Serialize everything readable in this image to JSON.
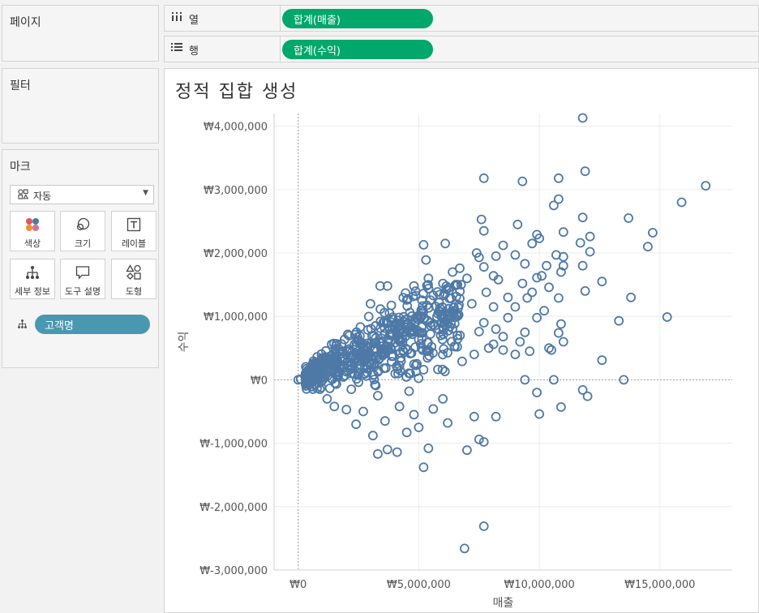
{
  "shelves": {
    "columns": {
      "icon": "columns-icon",
      "label": "열",
      "pill": "합계(매출)"
    },
    "rows": {
      "icon": "rows-icon",
      "label": "행",
      "pill": "합계(수익)"
    }
  },
  "cards": {
    "pages": {
      "title": "페이지"
    },
    "filters": {
      "title": "필터"
    },
    "marks": {
      "title": "마크",
      "mark_type": "자동",
      "buttons": [
        {
          "label": "색상",
          "icon": "color-icon"
        },
        {
          "label": "크기",
          "icon": "size-icon"
        },
        {
          "label": "레이블",
          "icon": "label-icon"
        },
        {
          "label": "세부 정보",
          "icon": "detail-icon"
        },
        {
          "label": "도구 설명",
          "icon": "tooltip-icon"
        },
        {
          "label": "도형",
          "icon": "shape-icon"
        }
      ],
      "detail_field": "고객명"
    }
  },
  "colors": {
    "mark": "#4e79a7",
    "row_pill": "#00a86b",
    "detail_pill": "#4a97b0"
  },
  "chart_data": {
    "type": "scatter",
    "title": "정적 집합 생성",
    "xlabel": "매출",
    "ylabel": "수익",
    "xlim": [
      -1000000,
      18000000
    ],
    "ylim": [
      -3000000,
      4200000
    ],
    "x_ticks": [
      0,
      5000000,
      10000000,
      15000000
    ],
    "x_tick_labels": [
      "₩0",
      "₩5,000,000",
      "₩10,000,000",
      "₩15,000,000"
    ],
    "y_ticks": [
      4000000,
      3000000,
      2000000,
      1000000,
      0,
      -1000000,
      -2000000,
      -3000000
    ],
    "y_tick_labels": [
      "₩4,000,000",
      "₩3,000,000",
      "₩2,000,000",
      "₩1,000,000",
      "₩0",
      "₩-1,000,000",
      "₩-2,000,000",
      "₩-3,000,000"
    ],
    "grid": true,
    "marker": "open-circle",
    "points": [
      [
        11800000,
        4130000
      ],
      [
        16900000,
        3060000
      ],
      [
        11900000,
        3290000
      ],
      [
        10800000,
        3180000
      ],
      [
        7700000,
        3180000
      ],
      [
        9300000,
        3130000
      ],
      [
        15900000,
        2800000
      ],
      [
        10800000,
        2850000
      ],
      [
        10600000,
        2750000
      ],
      [
        13700000,
        2550000
      ],
      [
        11800000,
        2560000
      ],
      [
        7600000,
        2530000
      ],
      [
        9100000,
        2450000
      ],
      [
        14700000,
        2320000
      ],
      [
        11000000,
        2330000
      ],
      [
        7700000,
        2350000
      ],
      [
        6100000,
        2150000
      ],
      [
        9900000,
        2290000
      ],
      [
        8500000,
        2120000
      ],
      [
        12100000,
        2260000
      ],
      [
        11700000,
        2160000
      ],
      [
        10000000,
        2230000
      ],
      [
        9700000,
        2150000
      ],
      [
        14500000,
        2100000
      ],
      [
        5200000,
        2130000
      ],
      [
        12100000,
        2020000
      ],
      [
        7400000,
        2000000
      ],
      [
        10700000,
        1970000
      ],
      [
        9000000,
        1970000
      ],
      [
        11000000,
        1940000
      ],
      [
        7500000,
        1930000
      ],
      [
        8200000,
        1950000
      ],
      [
        5300000,
        1890000
      ],
      [
        11800000,
        1800000
      ],
      [
        11000000,
        1800000
      ],
      [
        10900000,
        1700000
      ],
      [
        6700000,
        1760000
      ],
      [
        7700000,
        1780000
      ],
      [
        9400000,
        1830000
      ],
      [
        10300000,
        1800000
      ],
      [
        6400000,
        1700000
      ],
      [
        8100000,
        1640000
      ],
      [
        9900000,
        1610000
      ],
      [
        10100000,
        1640000
      ],
      [
        12600000,
        1550000
      ],
      [
        7000000,
        1600000
      ],
      [
        8300000,
        1580000
      ],
      [
        9300000,
        1520000
      ],
      [
        5400000,
        1600000
      ],
      [
        6000000,
        1520000
      ],
      [
        4800000,
        1480000
      ],
      [
        11900000,
        1400000
      ],
      [
        10400000,
        1460000
      ],
      [
        9700000,
        1380000
      ],
      [
        7800000,
        1380000
      ],
      [
        8700000,
        1300000
      ],
      [
        3400000,
        1480000
      ],
      [
        3700000,
        1480000
      ],
      [
        13800000,
        1300000
      ],
      [
        9500000,
        1290000
      ],
      [
        10800000,
        1290000
      ],
      [
        5600000,
        1330000
      ],
      [
        6700000,
        1280000
      ],
      [
        4500000,
        1260000
      ],
      [
        7200000,
        1200000
      ],
      [
        8100000,
        1150000
      ],
      [
        3000000,
        1200000
      ],
      [
        9000000,
        1150000
      ],
      [
        5100000,
        1100000
      ],
      [
        6300000,
        1060000
      ],
      [
        10200000,
        1090000
      ],
      [
        15300000,
        990000
      ],
      [
        13300000,
        930000
      ],
      [
        9900000,
        980000
      ],
      [
        8700000,
        980000
      ],
      [
        7700000,
        900000
      ],
      [
        10900000,
        880000
      ],
      [
        6000000,
        980000
      ],
      [
        5000000,
        950000
      ],
      [
        8200000,
        800000
      ],
      [
        9400000,
        750000
      ],
      [
        10800000,
        740000
      ],
      [
        7500000,
        760000
      ],
      [
        6600000,
        700000
      ],
      [
        8500000,
        680000
      ],
      [
        11000000,
        600000
      ],
      [
        9200000,
        600000
      ],
      [
        10400000,
        500000
      ],
      [
        8100000,
        560000
      ],
      [
        7900000,
        500000
      ],
      [
        10500000,
        470000
      ],
      [
        9600000,
        450000
      ],
      [
        12600000,
        310000
      ],
      [
        9000000,
        400000
      ],
      [
        8500000,
        470000
      ],
      [
        7300000,
        400000
      ],
      [
        6800000,
        290000
      ],
      [
        13500000,
        0
      ],
      [
        9400000,
        0
      ],
      [
        10600000,
        0
      ],
      [
        11800000,
        -160000
      ],
      [
        12000000,
        -260000
      ],
      [
        9900000,
        -200000
      ],
      [
        10900000,
        -430000
      ],
      [
        10000000,
        -540000
      ],
      [
        7300000,
        -580000
      ],
      [
        8200000,
        -580000
      ],
      [
        6200000,
        -680000
      ],
      [
        7500000,
        -940000
      ],
      [
        7700000,
        -980000
      ],
      [
        5400000,
        -1080000
      ],
      [
        7000000,
        -1110000
      ],
      [
        5200000,
        -1380000
      ],
      [
        7700000,
        -2310000
      ],
      [
        6900000,
        -2660000
      ],
      [
        4100000,
        -1140000
      ],
      [
        3300000,
        -1170000
      ],
      [
        3700000,
        -1100000
      ],
      [
        4500000,
        -830000
      ],
      [
        2400000,
        -700000
      ],
      [
        3100000,
        -880000
      ],
      [
        5000000,
        -750000
      ],
      [
        3600000,
        -650000
      ],
      [
        4800000,
        -550000
      ],
      [
        2700000,
        -500000
      ],
      [
        2000000,
        -470000
      ],
      [
        1500000,
        -420000
      ],
      [
        1200000,
        -300000
      ],
      [
        4200000,
        -420000
      ],
      [
        5600000,
        -460000
      ],
      [
        6000000,
        -300000
      ],
      [
        3300000,
        -250000
      ],
      [
        4600000,
        -180000
      ],
      [
        2200000,
        -150000
      ],
      [
        900000,
        -150000
      ],
      [
        700000,
        -70000
      ],
      [
        500000,
        -30000
      ],
      [
        300000,
        20000
      ],
      [
        100000,
        10000
      ],
      [
        0,
        0
      ]
    ],
    "cluster": {
      "x_range": [
        300000,
        6800000
      ],
      "y_range": [
        -500000,
        1500000
      ],
      "count": 540
    }
  }
}
